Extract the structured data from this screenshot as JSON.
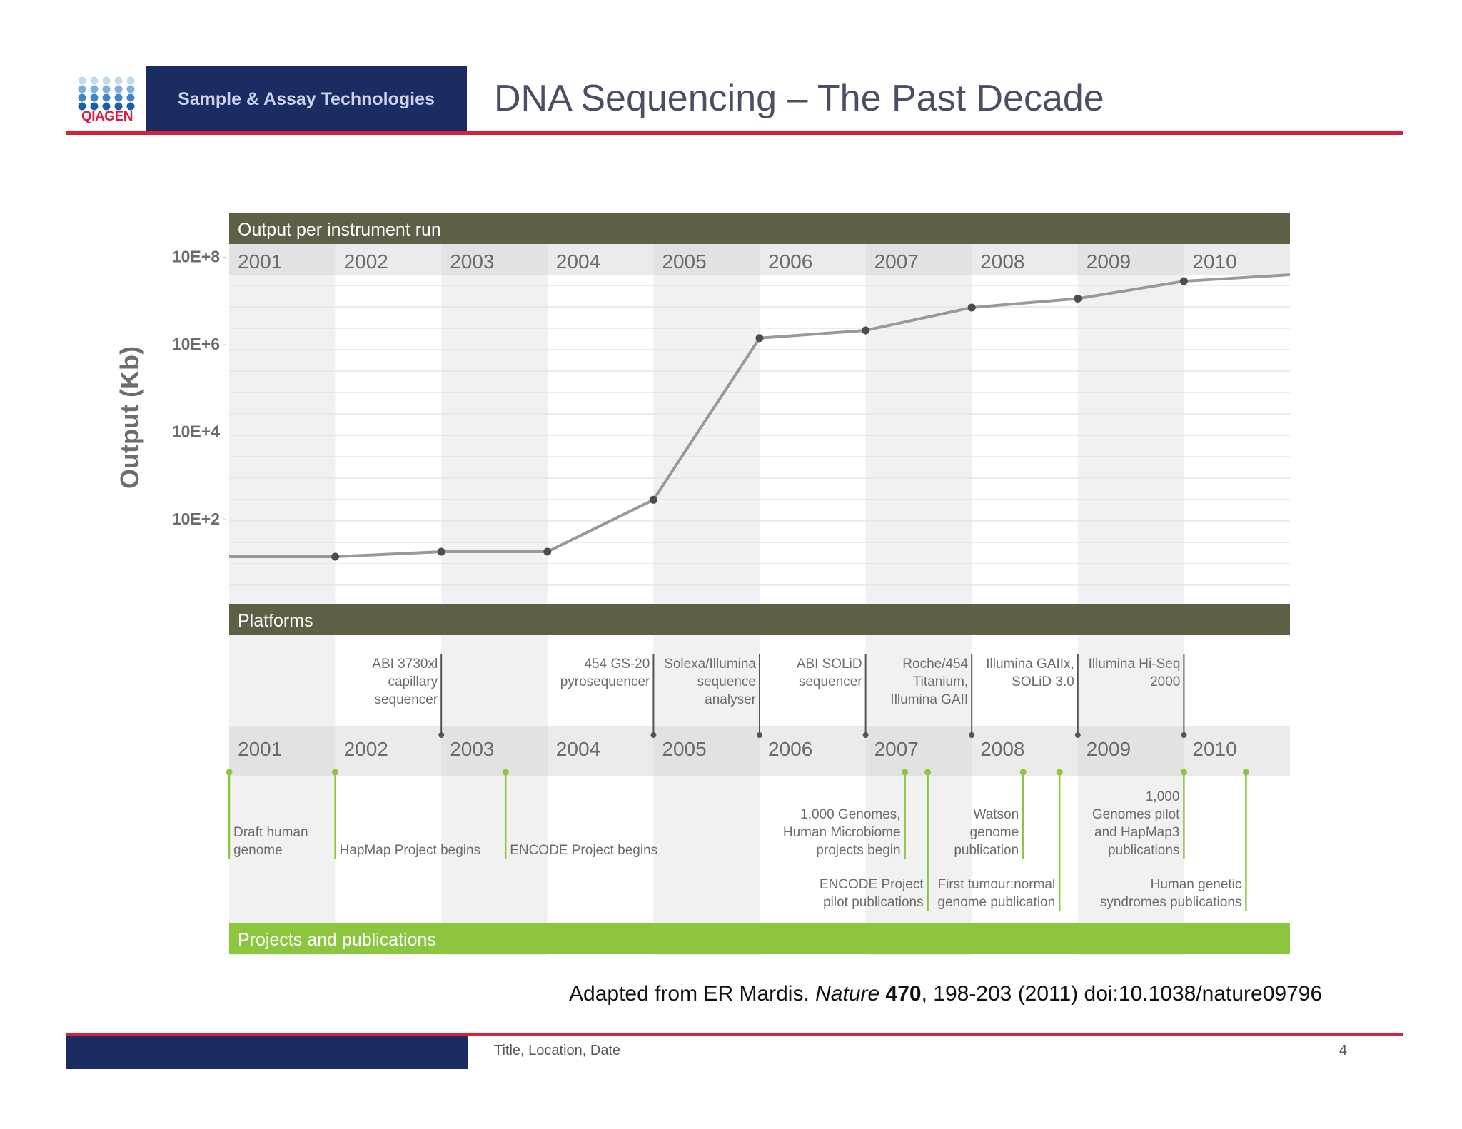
{
  "header": {
    "logo_text": "QIAGEN",
    "brand_tagline": "Sample & Assay Technologies",
    "slide_title": "DNA Sequencing – The Past Decade"
  },
  "colors": {
    "navy": "#1b2c63",
    "accent_red": "#d8203e",
    "band_dark": "#5f5e46",
    "band_green": "#8cc63f",
    "line_gray": "#9a9a94",
    "marker": "#4d4d4d"
  },
  "chart_data": {
    "type": "line",
    "title": "Output per instrument run",
    "ylabel": "Output (Kb)",
    "y_scale": "log",
    "y_tick_labels": [
      "10E+8",
      "10E+6",
      "10E+4",
      "10E+2"
    ],
    "x": [
      "2001",
      "2002",
      "2003",
      "2004",
      "2005",
      "2006",
      "2007",
      "2008",
      "2009",
      "2010"
    ],
    "series": [
      {
        "values": [
          100,
          100,
          130,
          130,
          2000,
          10000000,
          15000000,
          50000000,
          80000000,
          200000000
        ]
      }
    ],
    "grid": true,
    "platforms_title": "Platforms",
    "platforms": [
      {
        "year": "2002",
        "lines": [
          "ABI 3730xl",
          "capillary",
          "sequencer"
        ]
      },
      {
        "year": "2004",
        "lines": [
          "454 GS-20",
          "pyrosequencer"
        ]
      },
      {
        "year": "2005",
        "lines": [
          "Solexa/Illumina",
          "sequence",
          "analyser"
        ]
      },
      {
        "year": "2006",
        "lines": [
          "ABI SOLiD",
          "sequencer"
        ]
      },
      {
        "year": "2007",
        "lines": [
          "Roche/454",
          "Titanium,",
          "Illumina GAII"
        ]
      },
      {
        "year": "2008",
        "lines": [
          "Illumina GAIIx,",
          "SOLiD 3.0"
        ]
      },
      {
        "year": "2009",
        "lines": [
          "Illumina Hi-Seq",
          "2000"
        ]
      }
    ],
    "projects_title": "Projects and publications",
    "projects": [
      {
        "year": "2001",
        "lines": [
          "Draft human",
          "genome"
        ]
      },
      {
        "year": "2002",
        "lines": [
          "HapMap Project begins"
        ]
      },
      {
        "year": "2003",
        "lines": [
          "ENCODE Project begins"
        ]
      },
      {
        "year": "2007",
        "lines": [
          "1,000 Genomes,",
          "Human Microbiome",
          "projects begin"
        ]
      },
      {
        "year": "2007",
        "lines": [
          "ENCODE Project",
          "pilot publications"
        ]
      },
      {
        "year": "2008",
        "lines": [
          "Watson",
          "genome",
          "publication"
        ]
      },
      {
        "year": "2008",
        "lines": [
          "First tumour:normal",
          "genome publication"
        ]
      },
      {
        "year": "2009",
        "lines": [
          "1,000",
          "Genomes pilot",
          "and HapMap3",
          "publications"
        ]
      },
      {
        "year": "2010",
        "lines": [
          "Human genetic",
          "syndromes publications"
        ]
      }
    ]
  },
  "citation": {
    "prefix": "Adapted from ER Mardis. ",
    "journal": "Nature",
    "volume": "470",
    "suffix": ", 198-203 (2011) doi:10.1038/nature09796"
  },
  "footer": {
    "left_text": "Title, Location, Date",
    "page_number": "4"
  }
}
